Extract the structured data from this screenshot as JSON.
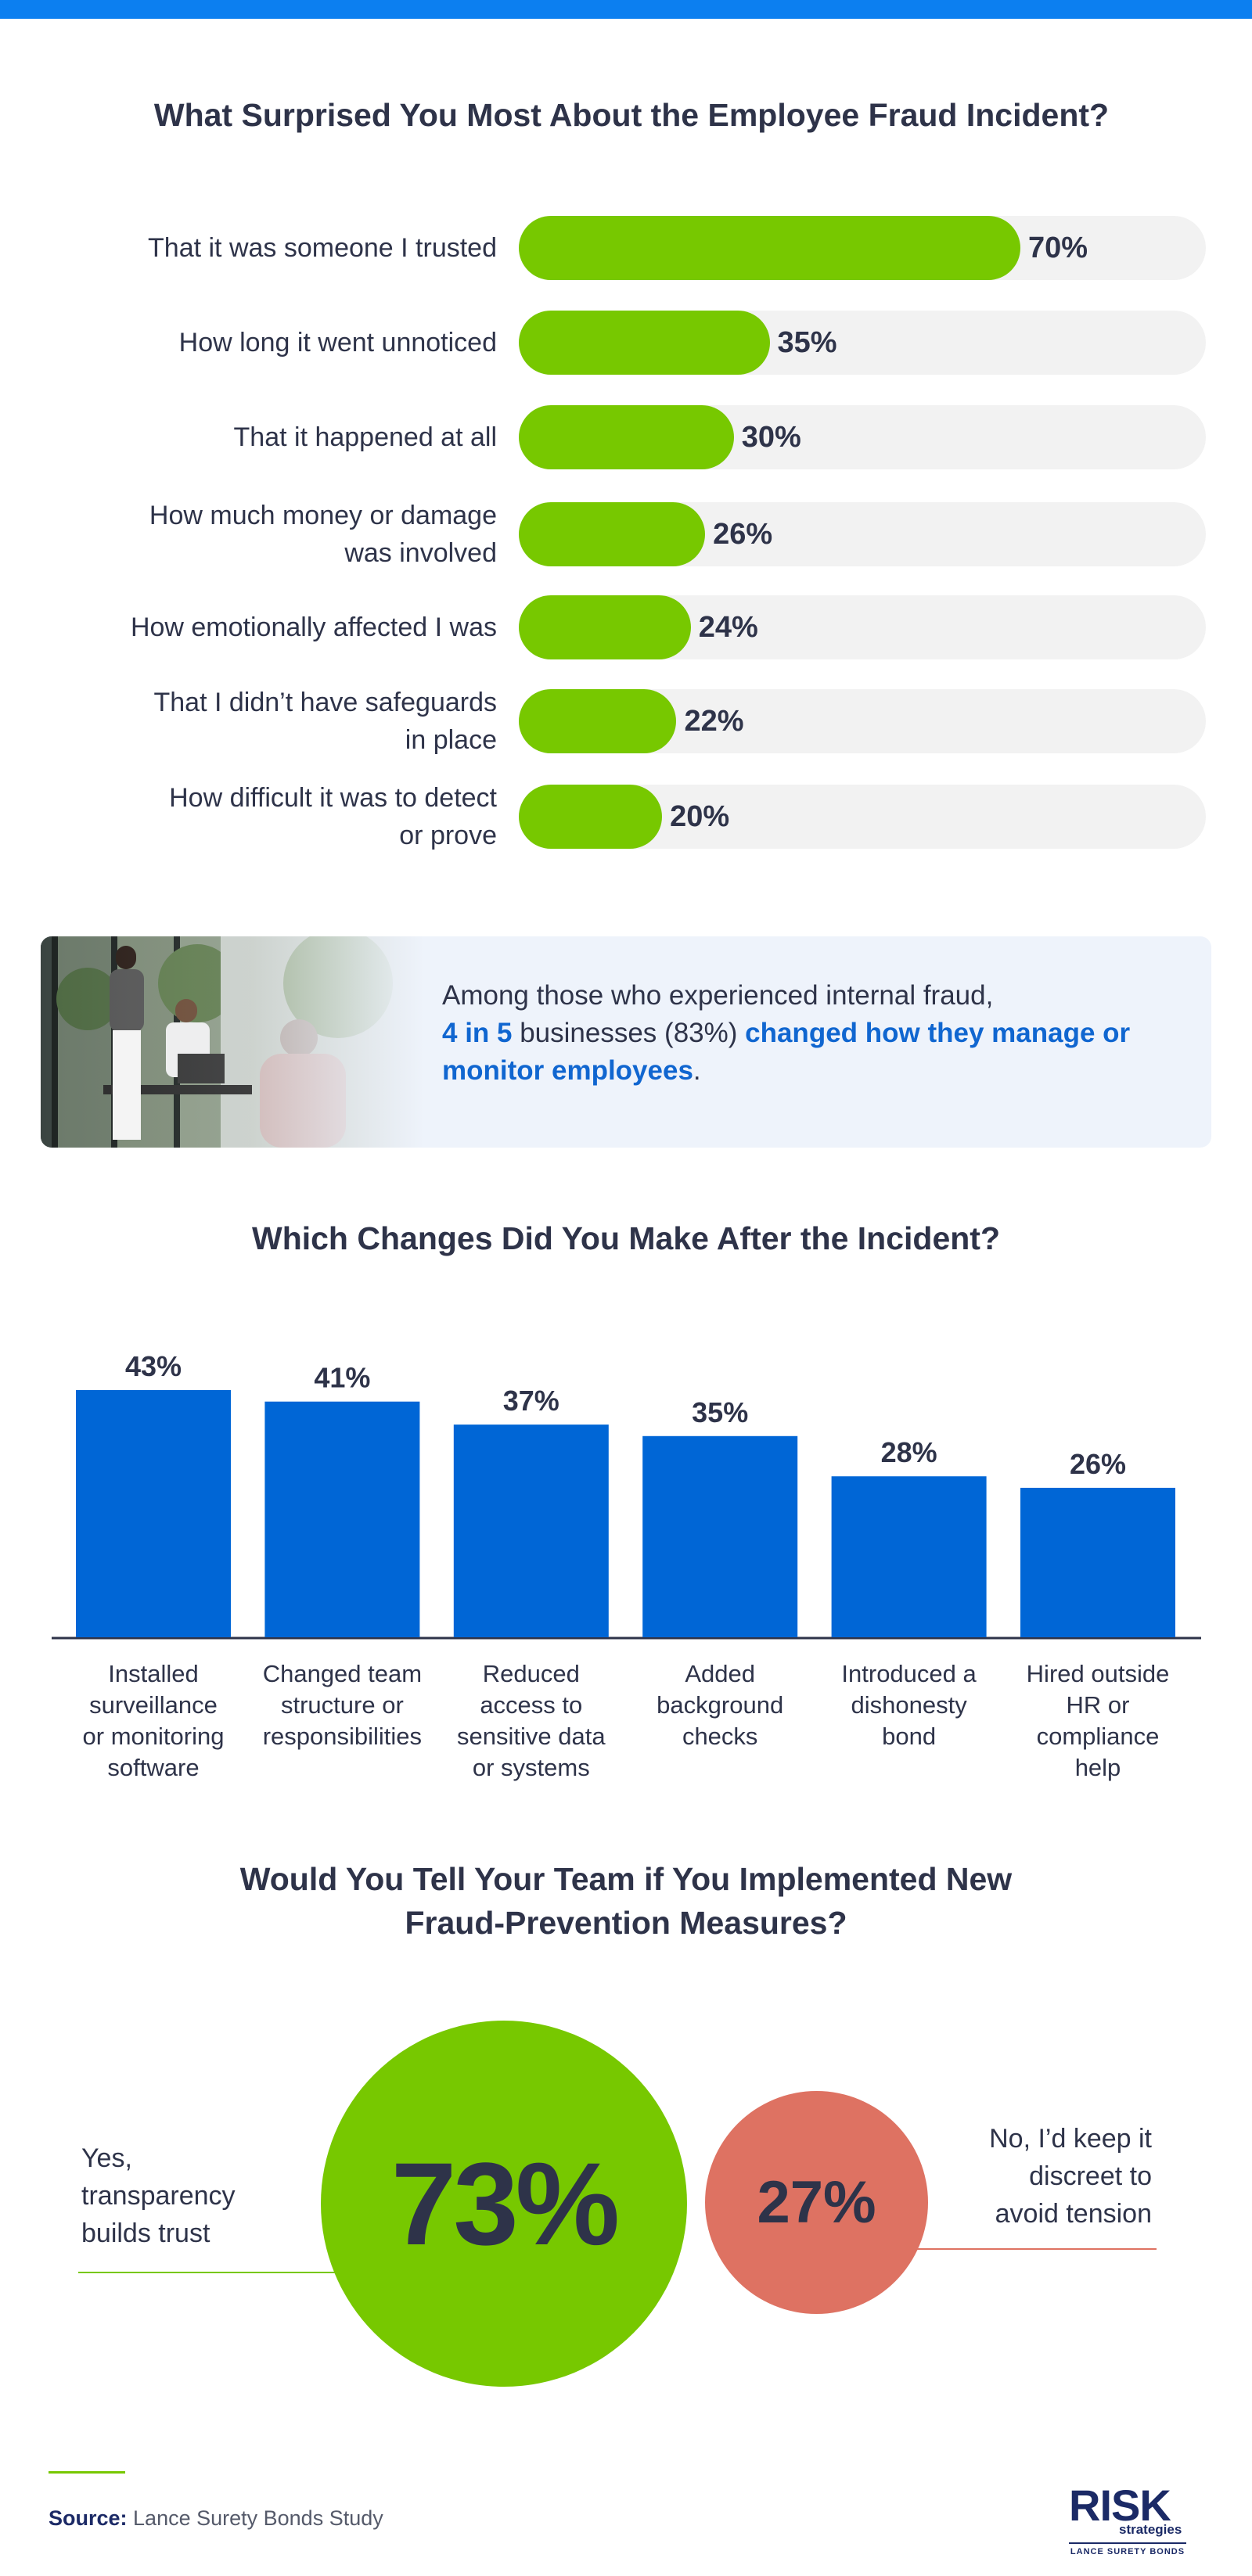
{
  "colors": {
    "accent_blue": "#0c7ff0",
    "bar_green": "#77c800",
    "bar_blue": "#0066d6",
    "track_gray": "#f2f2f2",
    "no_red": "#de7262",
    "text_dark": "#2e3349",
    "link_blue": "#1066d0"
  },
  "chart_data": [
    {
      "type": "bar",
      "orientation": "horizontal",
      "title": "What Surprised You Most About the Employee Fraud Incident?",
      "categories": [
        "That it was someone I trusted",
        "How long it went unnoticed",
        "That it happened at all",
        "How much money or damage was involved",
        "How emotionally affected I was",
        "That I didn’t have safeguards in place",
        "How difficult it was to detect or prove"
      ],
      "values": [
        70,
        35,
        30,
        26,
        24,
        22,
        20
      ],
      "value_labels": [
        "70%",
        "35%",
        "30%",
        "26%",
        "24%",
        "22%",
        "20%"
      ],
      "xlim": [
        0,
        100
      ],
      "grid": false
    },
    {
      "type": "bar",
      "orientation": "vertical",
      "title": "Which Changes Did You Make After the Incident?",
      "categories": [
        "Installed surveillance or monitoring software",
        "Changed team structure or responsibilities",
        "Reduced access to sensitive data or systems",
        "Added background checks",
        "Introduced a dishonesty bond",
        "Hired outside HR or compliance help"
      ],
      "values": [
        43,
        41,
        37,
        35,
        28,
        26
      ],
      "value_labels": [
        "43%",
        "41%",
        "37%",
        "35%",
        "28%",
        "26%"
      ],
      "ylim": [
        0,
        43
      ],
      "grid": false
    },
    {
      "type": "pie",
      "title": "Would You Tell Your Team if You Implemented New Fraud-Prevention Measures?",
      "categories": [
        "Yes, transparency builds trust",
        "No, I’d keep it discreet to avoid tension"
      ],
      "values": [
        73,
        27
      ],
      "value_labels": [
        "73%",
        "27%"
      ]
    }
  ],
  "hbar_lines": [
    [
      "That it was someone I trusted"
    ],
    [
      "How long it went unnoticed"
    ],
    [
      "That it happened at all"
    ],
    [
      "How much money or damage",
      "was involved"
    ],
    [
      "How emotionally affected I was"
    ],
    [
      "That I didn’t have safeguards",
      "in place"
    ],
    [
      "How difficult it was to detect",
      "or prove"
    ]
  ],
  "vbar_lines": [
    [
      "Installed",
      "surveillance",
      "or monitoring",
      "software"
    ],
    [
      "Changed team",
      "structure or",
      "responsibilities"
    ],
    [
      "Reduced",
      "access to",
      "sensitive data",
      "or systems"
    ],
    [
      "Added",
      "background",
      "checks"
    ],
    [
      "Introduced a",
      "dishonesty",
      "bond"
    ],
    [
      "Hired outside",
      "HR or",
      "compliance",
      "help"
    ]
  ],
  "callout": {
    "line1": "Among those who experienced internal fraud,",
    "highlight1": "4 in 5",
    "middle": " businesses (83%) ",
    "highlight2": "changed how they manage or monitor employees",
    "end": "."
  },
  "poll": {
    "title_line1": "Would You Tell Your Team if You Implemented New",
    "title_line2": "Fraud-Prevention Measures?",
    "yes_lines": [
      "Yes,",
      "transparency",
      "builds trust"
    ],
    "no_lines": [
      "No, I’d keep it",
      "discreet to",
      "avoid tension"
    ],
    "yes_value": "73%",
    "no_value": "27%"
  },
  "footer": {
    "source_label": "Source:",
    "source_text": " Lance Surety Bonds Study",
    "logo_main": "RISK",
    "logo_sub": "strategies",
    "logo_foot": "LANCE SURETY BONDS"
  }
}
